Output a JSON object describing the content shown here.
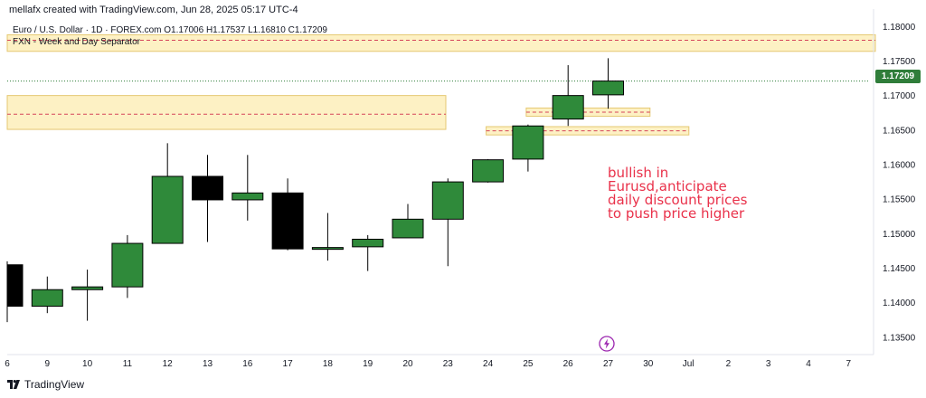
{
  "header": {
    "credit": "mellafx created with TradingView.com, Jun 28, 2025 05:17 UTC-4"
  },
  "legend": {
    "line1": "Euro / U.S. Dollar · 1D · FOREX.com  O1.17006  H1.17537  L1.16810  C1.17209",
    "line2": "FXN - Week and Day Separator"
  },
  "last_price": "1.17209",
  "annotation": {
    "lines": [
      "bullish in",
      "Eurusd,anticipate",
      "daily discount prices",
      "to push price higher"
    ]
  },
  "footer": {
    "brand": "TradingView"
  },
  "colors": {
    "bull": "#2f8a3a",
    "bear": "#000000",
    "zone_fill": "#fdf1c4",
    "zone_border": "#e5c872",
    "zone_line": "#d5445a",
    "annotation": "#e9314a",
    "price_tag": "#2f7d3a"
  },
  "chart_data": {
    "type": "candlestick",
    "symbol": "EURUSD",
    "timeframe": "1D",
    "x_tick_labels": [
      "6",
      "9",
      "10",
      "11",
      "12",
      "13",
      "16",
      "17",
      "18",
      "19",
      "20",
      "23",
      "24",
      "25",
      "26",
      "27",
      "30",
      "Jul",
      "2",
      "3",
      "4",
      "7"
    ],
    "y_tick_labels": [
      "1.18000",
      "1.17500",
      "1.17000",
      "1.16500",
      "1.16000",
      "1.15500",
      "1.15000",
      "1.14500",
      "1.14000",
      "1.13500"
    ],
    "ylim": [
      1.1325,
      1.182
    ],
    "candles": [
      {
        "x": "6",
        "open": 1.1455,
        "high": 1.146,
        "low": 1.1372,
        "close": 1.1395
      },
      {
        "x": "9",
        "open": 1.1395,
        "high": 1.1438,
        "low": 1.1385,
        "close": 1.1419
      },
      {
        "x": "10",
        "open": 1.1419,
        "high": 1.1448,
        "low": 1.1374,
        "close": 1.1423
      },
      {
        "x": "11",
        "open": 1.1423,
        "high": 1.1498,
        "low": 1.1407,
        "close": 1.1486
      },
      {
        "x": "12",
        "open": 1.1486,
        "high": 1.1631,
        "low": 1.1486,
        "close": 1.1583
      },
      {
        "x": "13",
        "open": 1.1583,
        "high": 1.1614,
        "low": 1.1488,
        "close": 1.1549
      },
      {
        "x": "16",
        "open": 1.1549,
        "high": 1.1614,
        "low": 1.1519,
        "close": 1.1559
      },
      {
        "x": "17",
        "open": 1.1559,
        "high": 1.158,
        "low": 1.1476,
        "close": 1.1478
      },
      {
        "x": "18",
        "open": 1.1478,
        "high": 1.153,
        "low": 1.1461,
        "close": 1.148
      },
      {
        "x": "19",
        "open": 1.1481,
        "high": 1.1498,
        "low": 1.1446,
        "close": 1.1492
      },
      {
        "x": "20",
        "open": 1.1494,
        "high": 1.1543,
        "low": 1.1494,
        "close": 1.1521
      },
      {
        "x": "23",
        "open": 1.1521,
        "high": 1.158,
        "low": 1.1453,
        "close": 1.1575
      },
      {
        "x": "24",
        "open": 1.1575,
        "high": 1.1608,
        "low": 1.1574,
        "close": 1.1607
      },
      {
        "x": "25",
        "open": 1.1608,
        "high": 1.1658,
        "low": 1.159,
        "close": 1.1656
      },
      {
        "x": "26",
        "open": 1.1666,
        "high": 1.1744,
        "low": 1.1656,
        "close": 1.17
      },
      {
        "x": "27",
        "open": 1.1701,
        "high": 1.1754,
        "low": 1.1681,
        "close": 1.1721
      }
    ],
    "zones": [
      {
        "label": "",
        "from_x": "5",
        "to_x": "12",
        "y_top": 1.17,
        "y_bottom": 1.1651,
        "mid": 1.1673
      },
      {
        "label": "",
        "from_x": "6",
        "to_x": "7",
        "y_top": 1.1788,
        "y_bottom": 1.1764,
        "mid": 1.178
      },
      {
        "label": "",
        "from_x": "25",
        "to_x": "27",
        "y_top": 1.1682,
        "y_bottom": 1.167,
        "mid": 1.1676
      },
      {
        "label": "",
        "from_x": "24",
        "to_x": "30",
        "y_top": 1.1655,
        "y_bottom": 1.1643,
        "mid": 1.1649
      }
    ],
    "last_price_line": 1.17209
  }
}
